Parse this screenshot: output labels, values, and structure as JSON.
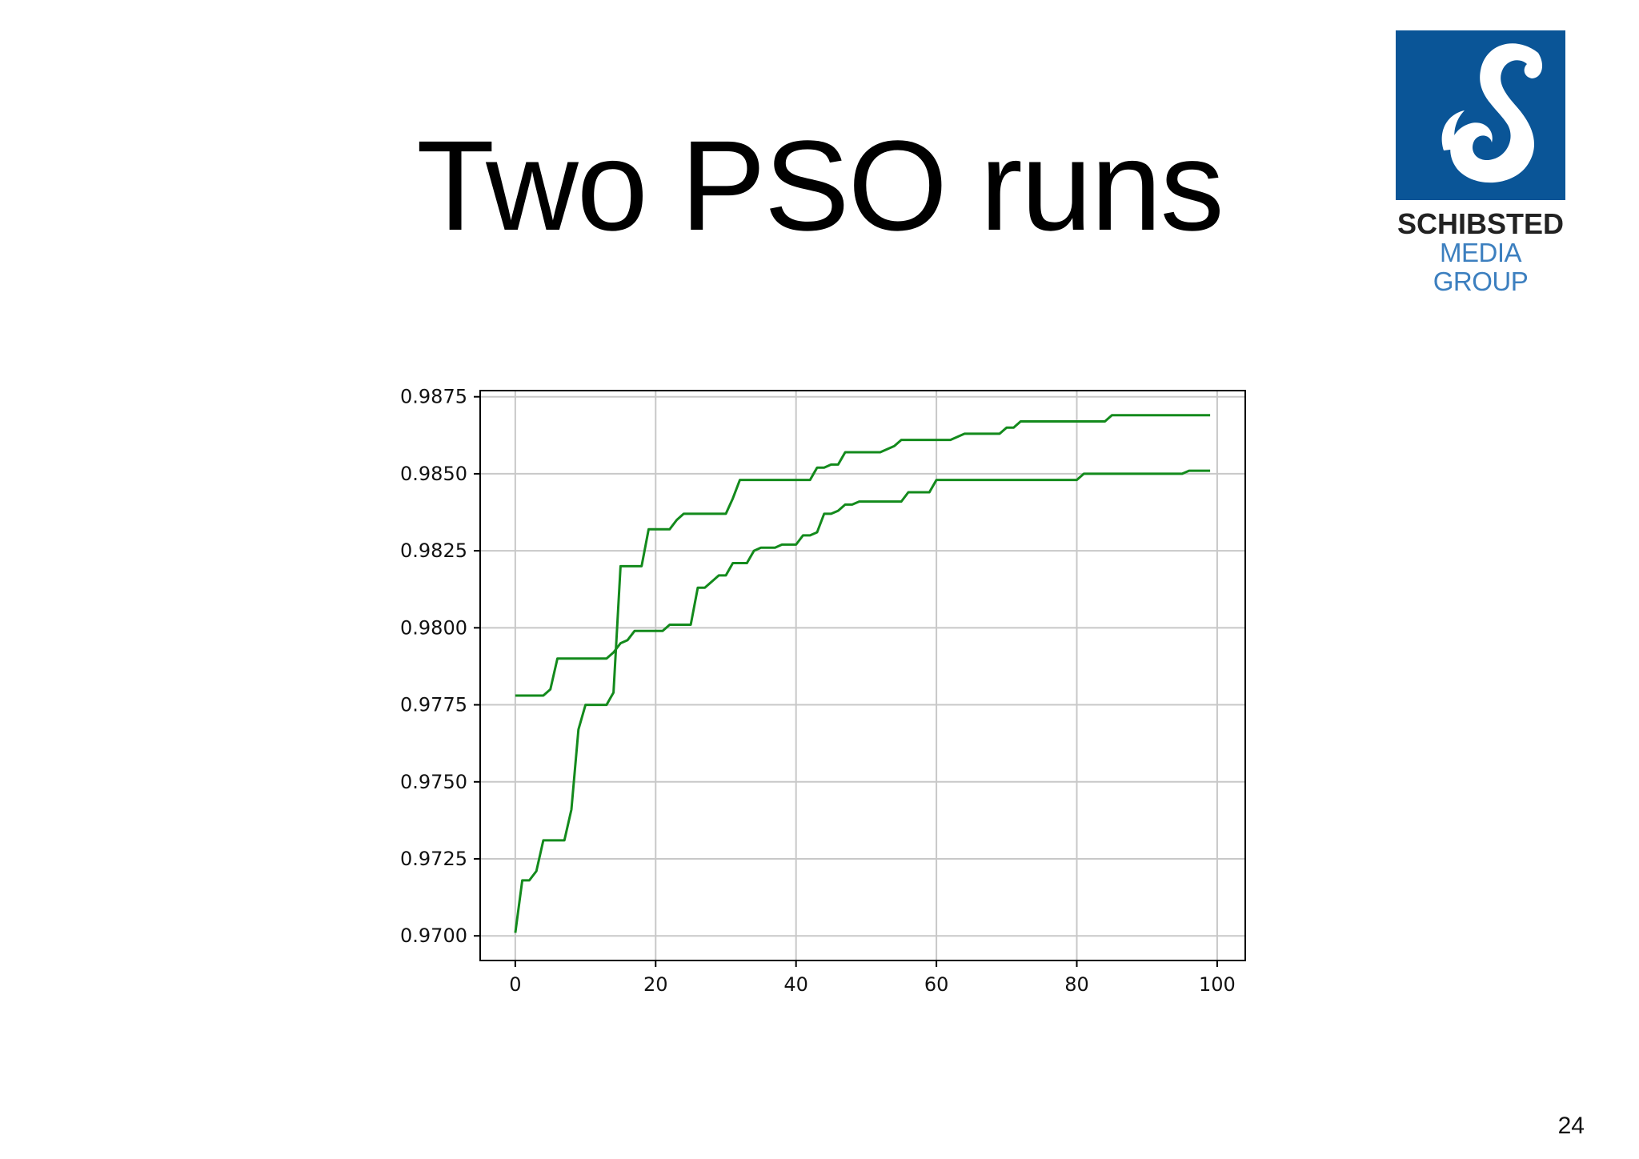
{
  "slide": {
    "title": "Two PSO runs",
    "page_number": "24"
  },
  "logo": {
    "line1": "SCHIBSTED",
    "line2": "MEDIA GROUP",
    "icon": "schibsted-s-logo",
    "box_color": "#0a5597"
  },
  "chart_data": {
    "type": "line",
    "title": "",
    "xlabel": "",
    "ylabel": "",
    "xlim": [
      -5,
      104
    ],
    "ylim": [
      0.9692,
      0.9877
    ],
    "grid": true,
    "line_color": "#138a1c",
    "x_ticks": [
      0,
      20,
      40,
      60,
      80,
      100
    ],
    "x_tick_labels": [
      "0",
      "20",
      "40",
      "60",
      "80",
      "100"
    ],
    "y_ticks": [
      0.97,
      0.9725,
      0.975,
      0.9775,
      0.98,
      0.9825,
      0.985,
      0.9875
    ],
    "y_tick_labels": [
      "0.9700",
      "0.9725",
      "0.9750",
      "0.9775",
      "0.9800",
      "0.9825",
      "0.9850",
      "0.9875"
    ],
    "series": [
      {
        "points": [
          [
            0,
            0.9701
          ],
          [
            1,
            0.9718
          ],
          [
            2,
            0.9718
          ],
          [
            3,
            0.9721
          ],
          [
            4,
            0.9731
          ],
          [
            5,
            0.9731
          ],
          [
            6,
            0.9731
          ],
          [
            7,
            0.9731
          ],
          [
            8,
            0.9741
          ],
          [
            9,
            0.9767
          ],
          [
            10,
            0.9775
          ],
          [
            11,
            0.9775
          ],
          [
            12,
            0.9775
          ],
          [
            13,
            0.9775
          ],
          [
            14,
            0.9779
          ],
          [
            15,
            0.982
          ],
          [
            16,
            0.982
          ],
          [
            17,
            0.982
          ],
          [
            18,
            0.982
          ],
          [
            19,
            0.9832
          ],
          [
            20,
            0.9832
          ],
          [
            21,
            0.9832
          ],
          [
            22,
            0.9832
          ],
          [
            23,
            0.9835
          ],
          [
            24,
            0.9837
          ],
          [
            25,
            0.9837
          ],
          [
            26,
            0.9837
          ],
          [
            27,
            0.9837
          ],
          [
            28,
            0.9837
          ],
          [
            29,
            0.9837
          ],
          [
            30,
            0.9837
          ],
          [
            31,
            0.9842
          ],
          [
            32,
            0.9848
          ],
          [
            35,
            0.9848
          ],
          [
            40,
            0.9848
          ],
          [
            42,
            0.9848
          ],
          [
            43,
            0.9852
          ],
          [
            44,
            0.9852
          ],
          [
            45,
            0.9853
          ],
          [
            46,
            0.9853
          ],
          [
            47,
            0.9857
          ],
          [
            48,
            0.9857
          ],
          [
            50,
            0.9857
          ],
          [
            52,
            0.9857
          ],
          [
            53,
            0.9858
          ],
          [
            54,
            0.9859
          ],
          [
            55,
            0.9861
          ],
          [
            58,
            0.9861
          ],
          [
            62,
            0.9861
          ],
          [
            63,
            0.9862
          ],
          [
            64,
            0.9863
          ],
          [
            68,
            0.9863
          ],
          [
            69,
            0.9863
          ],
          [
            70,
            0.9865
          ],
          [
            71,
            0.9865
          ],
          [
            72,
            0.9867
          ],
          [
            75,
            0.9867
          ],
          [
            80,
            0.9867
          ],
          [
            84,
            0.9867
          ],
          [
            85,
            0.9869
          ],
          [
            90,
            0.9869
          ],
          [
            95,
            0.9869
          ],
          [
            99,
            0.9869
          ]
        ]
      },
      {
        "points": [
          [
            0,
            0.9778
          ],
          [
            1,
            0.9778
          ],
          [
            2,
            0.9778
          ],
          [
            3,
            0.9778
          ],
          [
            4,
            0.9778
          ],
          [
            5,
            0.978
          ],
          [
            6,
            0.979
          ],
          [
            7,
            0.979
          ],
          [
            10,
            0.979
          ],
          [
            13,
            0.979
          ],
          [
            14,
            0.9792
          ],
          [
            15,
            0.9795
          ],
          [
            16,
            0.9796
          ],
          [
            17,
            0.9799
          ],
          [
            18,
            0.9799
          ],
          [
            20,
            0.9799
          ],
          [
            21,
            0.9799
          ],
          [
            22,
            0.9801
          ],
          [
            23,
            0.9801
          ],
          [
            25,
            0.9801
          ],
          [
            26,
            0.9813
          ],
          [
            27,
            0.9813
          ],
          [
            28,
            0.9815
          ],
          [
            29,
            0.9817
          ],
          [
            30,
            0.9817
          ],
          [
            31,
            0.9821
          ],
          [
            32,
            0.9821
          ],
          [
            33,
            0.9821
          ],
          [
            34,
            0.9825
          ],
          [
            35,
            0.9826
          ],
          [
            37,
            0.9826
          ],
          [
            38,
            0.9827
          ],
          [
            39,
            0.9827
          ],
          [
            40,
            0.9827
          ],
          [
            41,
            0.983
          ],
          [
            42,
            0.983
          ],
          [
            43,
            0.9831
          ],
          [
            44,
            0.9837
          ],
          [
            45,
            0.9837
          ],
          [
            46,
            0.9838
          ],
          [
            47,
            0.984
          ],
          [
            48,
            0.984
          ],
          [
            49,
            0.9841
          ],
          [
            50,
            0.9841
          ],
          [
            52,
            0.9841
          ],
          [
            55,
            0.9841
          ],
          [
            56,
            0.9844
          ],
          [
            59,
            0.9844
          ],
          [
            60,
            0.9848
          ],
          [
            65,
            0.9848
          ],
          [
            70,
            0.9848
          ],
          [
            75,
            0.9848
          ],
          [
            80,
            0.9848
          ],
          [
            81,
            0.985
          ],
          [
            85,
            0.985
          ],
          [
            90,
            0.985
          ],
          [
            95,
            0.985
          ],
          [
            96,
            0.9851
          ],
          [
            99,
            0.9851
          ]
        ]
      }
    ]
  }
}
